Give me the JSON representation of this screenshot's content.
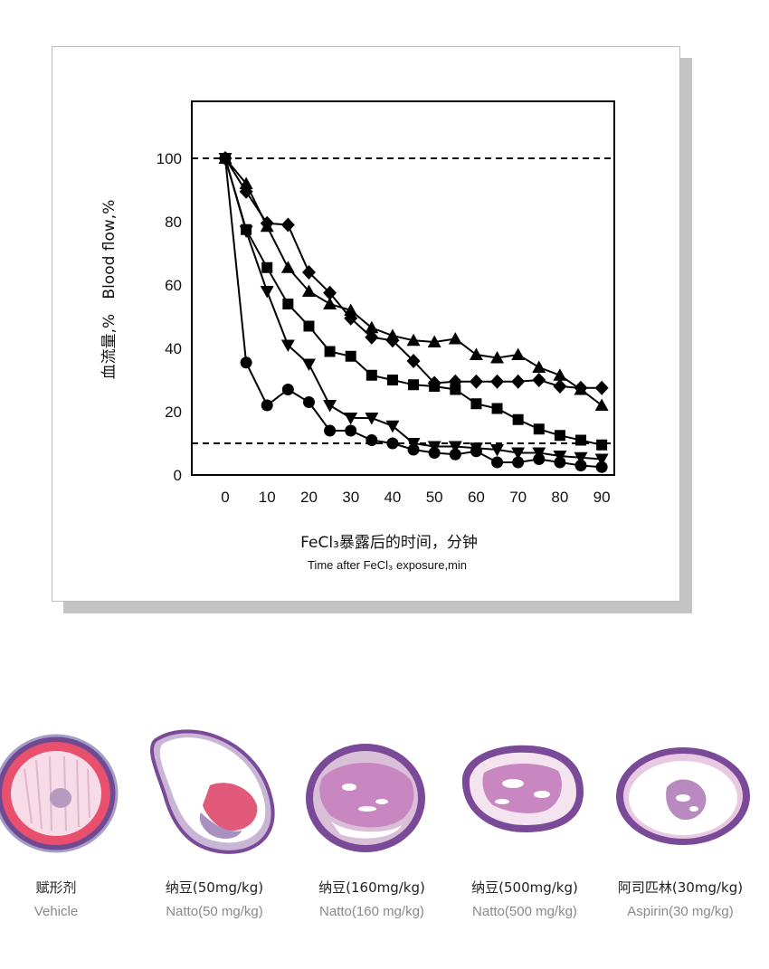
{
  "chart_data": {
    "type": "line",
    "xlabel_cn": "FeCl₃暴露后的时间，分钟",
    "xlabel_en": "Time after FeCl₃ exposure,min",
    "ylabel": "血流量,%   Blood flow,%",
    "xlim": [
      -8,
      93
    ],
    "ylim": [
      0,
      118
    ],
    "x_ticks": [
      0,
      10,
      20,
      30,
      40,
      50,
      60,
      70,
      80,
      90
    ],
    "y_ticks": [
      0,
      20,
      40,
      60,
      80,
      100
    ],
    "reference_lines": [
      100,
      10
    ],
    "grid": false,
    "legend": "none",
    "series": [
      {
        "marker": "circle",
        "points": [
          [
            0,
            100
          ],
          [
            5,
            35.5
          ],
          [
            10,
            22
          ],
          [
            15,
            27
          ],
          [
            20,
            23
          ],
          [
            25,
            14
          ],
          [
            30,
            14
          ],
          [
            35,
            11
          ],
          [
            40,
            10
          ],
          [
            45,
            8
          ],
          [
            50,
            7
          ],
          [
            55,
            6.5
          ],
          [
            60,
            7.5
          ],
          [
            65,
            4
          ],
          [
            70,
            4
          ],
          [
            75,
            5
          ],
          [
            80,
            4
          ],
          [
            85,
            3
          ],
          [
            90,
            2.5
          ]
        ]
      },
      {
        "marker": "triangle-down",
        "points": [
          [
            0,
            100
          ],
          [
            5,
            77
          ],
          [
            10,
            58
          ],
          [
            15,
            41
          ],
          [
            20,
            35
          ],
          [
            25,
            22
          ],
          [
            30,
            18
          ],
          [
            35,
            18
          ],
          [
            40,
            15.5
          ],
          [
            45,
            10
          ],
          [
            50,
            9
          ],
          [
            55,
            9
          ],
          [
            60,
            8.5
          ],
          [
            65,
            8
          ],
          [
            70,
            7
          ],
          [
            75,
            7
          ],
          [
            80,
            6
          ],
          [
            85,
            5.5
          ],
          [
            90,
            5
          ]
        ]
      },
      {
        "marker": "square",
        "points": [
          [
            0,
            100
          ],
          [
            5,
            77.5
          ],
          [
            10,
            65.5
          ],
          [
            15,
            54
          ],
          [
            20,
            47
          ],
          [
            25,
            39
          ],
          [
            30,
            37.5
          ],
          [
            35,
            31.5
          ],
          [
            40,
            30
          ],
          [
            45,
            28.5
          ],
          [
            50,
            28
          ],
          [
            55,
            27
          ],
          [
            60,
            22.5
          ],
          [
            65,
            21
          ],
          [
            70,
            17.5
          ],
          [
            75,
            14.5
          ],
          [
            80,
            12.5
          ],
          [
            85,
            11
          ],
          [
            90,
            9.5
          ]
        ]
      },
      {
        "marker": "triangle-up",
        "points": [
          [
            0,
            100
          ],
          [
            5,
            92
          ],
          [
            10,
            78.5
          ],
          [
            15,
            65.5
          ],
          [
            20,
            58
          ],
          [
            25,
            54
          ],
          [
            30,
            52
          ],
          [
            35,
            46.5
          ],
          [
            40,
            44
          ],
          [
            45,
            42.5
          ],
          [
            50,
            42
          ],
          [
            55,
            43
          ],
          [
            60,
            38
          ],
          [
            65,
            37
          ],
          [
            70,
            38
          ],
          [
            75,
            34
          ],
          [
            80,
            31.5
          ],
          [
            85,
            27
          ],
          [
            90,
            22
          ]
        ]
      },
      {
        "marker": "diamond",
        "points": [
          [
            0,
            100
          ],
          [
            5,
            89.5
          ],
          [
            10,
            79.5
          ],
          [
            15,
            79
          ],
          [
            20,
            64
          ],
          [
            25,
            57.5
          ],
          [
            30,
            49.5
          ],
          [
            35,
            43.5
          ],
          [
            40,
            42.5
          ],
          [
            45,
            36
          ],
          [
            50,
            29
          ],
          [
            55,
            29.5
          ],
          [
            60,
            29.5
          ],
          [
            65,
            29.5
          ],
          [
            70,
            29.5
          ],
          [
            75,
            30
          ],
          [
            80,
            28
          ],
          [
            85,
            27.5
          ],
          [
            90,
            27.5
          ]
        ]
      }
    ]
  },
  "specimens": [
    {
      "label_cn": "赋形剂",
      "label_en": "Vehicle"
    },
    {
      "label_cn": "纳豆(50mg/kg)",
      "label_en": "Natto(50 mg/kg)"
    },
    {
      "label_cn": "纳豆(160mg/kg)",
      "label_en": "Natto(160 mg/kg)"
    },
    {
      "label_cn": "纳豆(500mg/kg)",
      "label_en": "Natto(500 mg/kg)"
    },
    {
      "label_cn": "阿司匹林(30mg/kg)",
      "label_en": "Aspirin(30 mg/kg)"
    }
  ],
  "colors": {
    "stain_purple": "#7a4a98",
    "stain_pink": "#c887c0",
    "clot_red": "#e8506e",
    "caption_gray": "#8a8a8a"
  }
}
